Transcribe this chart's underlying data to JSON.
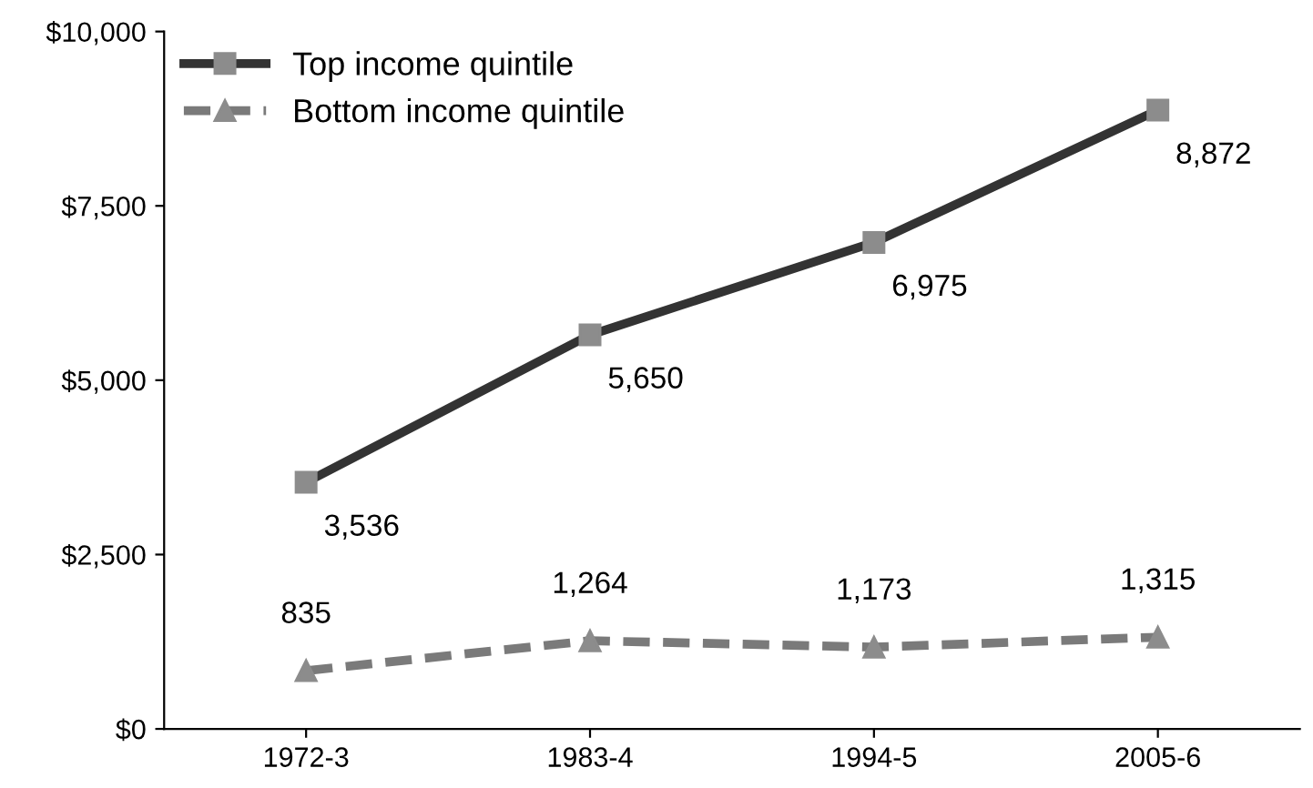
{
  "chart_data": {
    "type": "line",
    "categories": [
      "1972-3",
      "1983-4",
      "1994-5",
      "2005-6"
    ],
    "series": [
      {
        "name": "Top income quintile",
        "color": "#333333",
        "values": [
          3536,
          5650,
          6975,
          8872
        ],
        "value_labels": [
          "3,536",
          "5,650",
          "6,975",
          "8,872"
        ],
        "marker": "square",
        "line_style": "solid"
      },
      {
        "name": "Bottom income quintile",
        "color": "#7a7a7a",
        "values": [
          835,
          1264,
          1173,
          1315
        ],
        "value_labels": [
          "835",
          "1,264",
          "1,173",
          "1,315"
        ],
        "marker": "triangle",
        "line_style": "dashed"
      }
    ],
    "ylim": [
      0,
      10000
    ],
    "yticks": [
      {
        "value": 0,
        "label": "$0"
      },
      {
        "value": 2500,
        "label": "$2,500"
      },
      {
        "value": 5000,
        "label": "$5,000"
      },
      {
        "value": 7500,
        "label": "$7,500"
      },
      {
        "value": 10000,
        "label": "$10,000"
      }
    ],
    "grid": false,
    "legend": "top left"
  }
}
